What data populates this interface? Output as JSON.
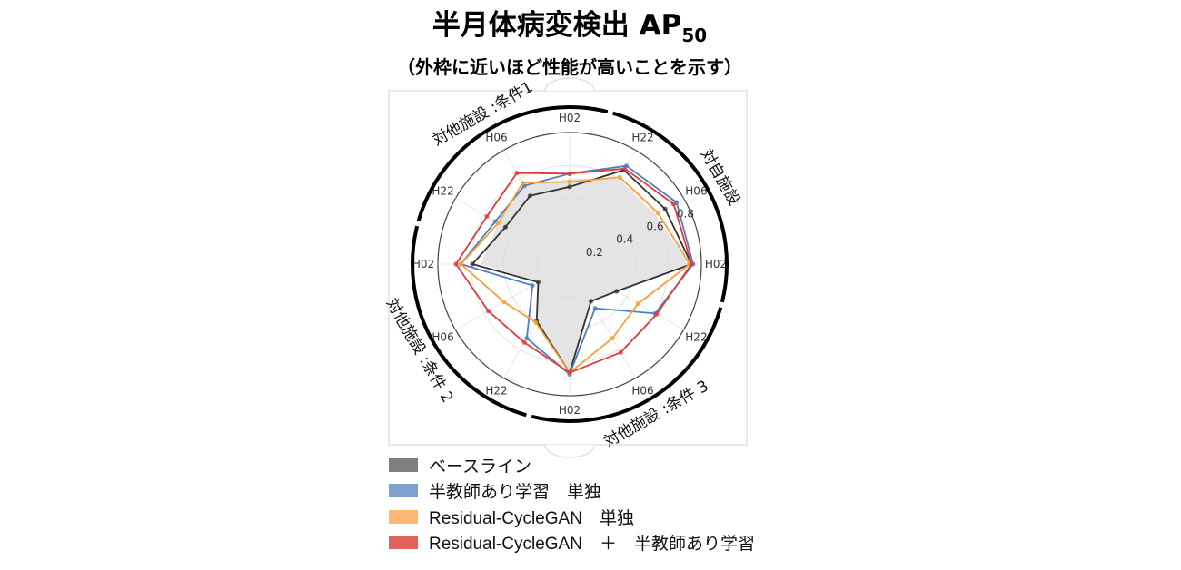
{
  "header": {
    "title": "半月体病変検出 AP",
    "title_sub": "50",
    "subtitle": "（外枠に近いほど性能が高いことを示す）"
  },
  "chart_data": {
    "type": "radar",
    "title": "半月体病変検出 AP50",
    "axes": [
      "H02",
      "H22",
      "H06",
      "H02",
      "H22",
      "H06",
      "H02",
      "H22",
      "H06",
      "H02",
      "H22",
      "H06"
    ],
    "radial_ticks": [
      "0.2",
      "0.4",
      "0.6",
      "0.8"
    ],
    "radial_tick_values": [
      0.2,
      0.4,
      0.6,
      0.8
    ],
    "rmax": 0.8,
    "groups": [
      {
        "label": "対自施設",
        "axis_indices": [
          1,
          2,
          3
        ]
      },
      {
        "label": "対他施設 :条件 3",
        "axis_indices": [
          4,
          5,
          6
        ]
      },
      {
        "label": "対他施設 :条件 2",
        "axis_indices": [
          7,
          8,
          9
        ]
      },
      {
        "label": "対他施設 :条件1",
        "axis_indices": [
          10,
          11,
          0
        ]
      }
    ],
    "shaded_region": {
      "color": "#d9d9d9",
      "values": [
        0.52,
        0.6,
        0.6,
        0.73,
        0.33,
        0.26,
        0.66,
        0.4,
        0.22,
        0.54,
        0.5,
        0.55
      ]
    },
    "series": [
      {
        "name": "ベースライン",
        "color": "#333333",
        "swatch": "#7f7f7f",
        "values": [
          0.47,
          0.66,
          0.67,
          0.74,
          0.33,
          0.26,
          0.66,
          0.4,
          0.22,
          0.59,
          0.45,
          0.48
        ]
      },
      {
        "name": "半教師あり学習　単独",
        "color": "#4a7fc0",
        "swatch": "#7ea1d0",
        "values": [
          0.55,
          0.69,
          0.75,
          0.75,
          0.6,
          0.31,
          0.67,
          0.52,
          0.26,
          0.66,
          0.52,
          0.55
        ]
      },
      {
        "name": "Residual-CycleGAN　単独",
        "color": "#f7a03a",
        "swatch": "#fdb873",
        "values": [
          0.5,
          0.61,
          0.62,
          0.73,
          0.48,
          0.52,
          0.66,
          0.41,
          0.46,
          0.66,
          0.5,
          0.57
        ]
      },
      {
        "name": "Residual-CycleGAN　＋　半教師あり学習",
        "color": "#e03a3a",
        "swatch": "#e0605a",
        "values": [
          0.55,
          0.67,
          0.73,
          0.74,
          0.61,
          0.62,
          0.66,
          0.55,
          0.57,
          0.69,
          0.58,
          0.64
        ]
      }
    ],
    "legend_position": "bottom-left"
  }
}
